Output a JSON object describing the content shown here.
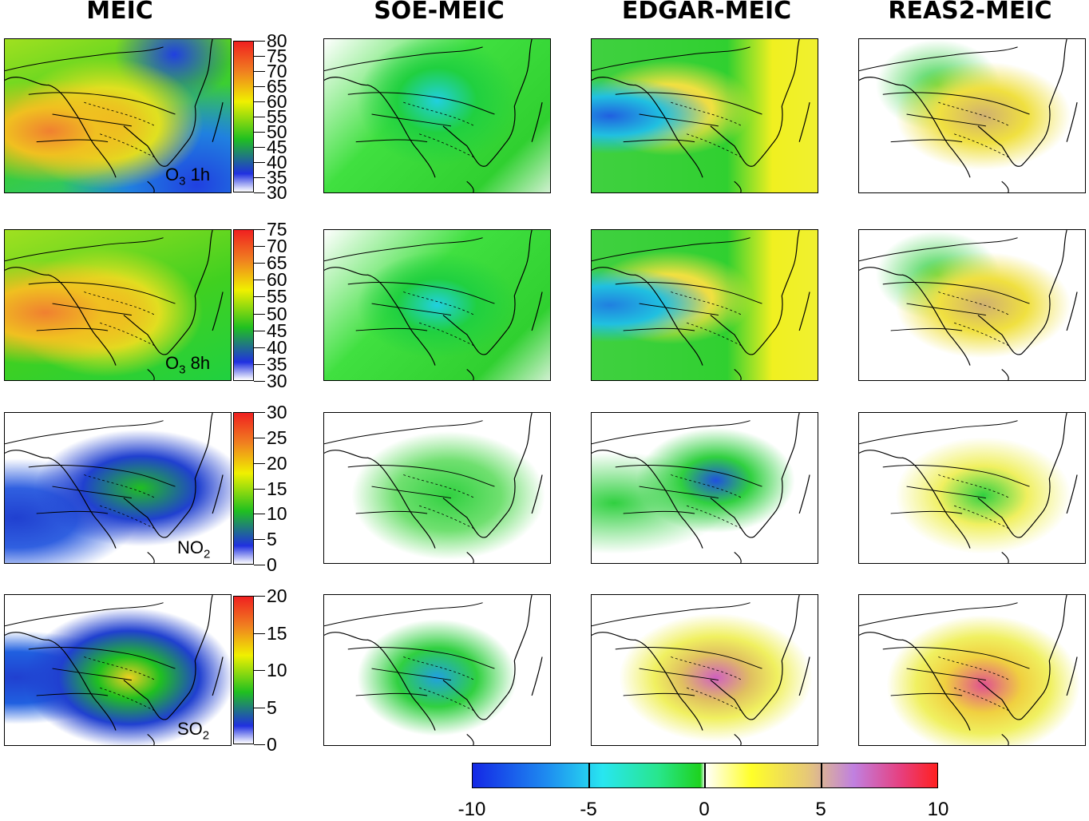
{
  "columns": [
    "MEIC",
    "SOE-MEIC",
    "EDGAR-MEIC",
    "REAS2-MEIC"
  ],
  "rows": [
    {
      "species": "O",
      "sub": "3",
      "suffix": " 1h",
      "colorbar_ticks": [
        "80",
        "75",
        "70",
        "65",
        "60",
        "55",
        "50",
        "45",
        "40",
        "35",
        "30"
      ]
    },
    {
      "species": "O",
      "sub": "3",
      "suffix": " 8h",
      "colorbar_ticks": [
        "75",
        "70",
        "65",
        "60",
        "55",
        "50",
        "45",
        "40",
        "35",
        "30"
      ]
    },
    {
      "species": "NO",
      "sub": "2",
      "suffix": "",
      "colorbar_ticks": [
        "30",
        "25",
        "20",
        "15",
        "10",
        "5",
        "0"
      ]
    },
    {
      "species": "SO",
      "sub": "2",
      "suffix": "",
      "colorbar_ticks": [
        "20",
        "15",
        "10",
        "5",
        "0"
      ]
    }
  ],
  "diff_colorbar": {
    "ticks": [
      "-10",
      "-5",
      "0",
      "5",
      "10"
    ]
  },
  "colors": {
    "meic_scale": [
      "#ffffff",
      "#2030e0",
      "#20c020",
      "#f0f000",
      "#f08020",
      "#f02020"
    ],
    "diff_scale": [
      "#1428e6",
      "#28e6f0",
      "#1ed21e",
      "#ffffff",
      "#ffff28",
      "#c080e0",
      "#ff2020"
    ]
  }
}
